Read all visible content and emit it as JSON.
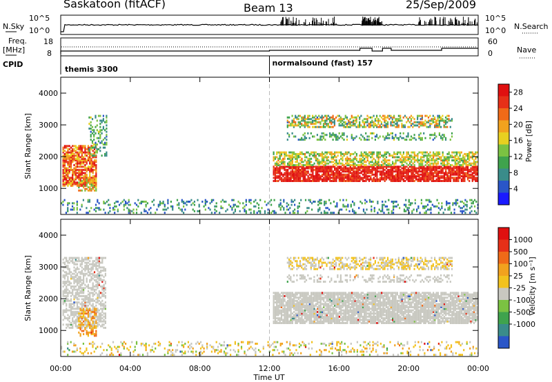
{
  "header": {
    "station": "Saskatoon (fitACF)",
    "beam": "Beam 13",
    "date": "25/Sep/2009"
  },
  "params_panel": {
    "nsky_label": "N.Sky",
    "nsky_ticks": [
      "10^5",
      "10^0"
    ],
    "nsearch_label": "N.Search",
    "nsearch_ticks": [
      "10^5",
      "10^0"
    ],
    "freq_label": "Freq.",
    "freq_unit": "[MHz]",
    "freq_ticks": [
      "18",
      "8"
    ],
    "nave_label": "Nave",
    "nave_ticks": [
      "60",
      "0"
    ],
    "cpid_label": "CPID",
    "cpid_segments": [
      {
        "start_hour": 0,
        "end_hour": 12,
        "text": "themis 3300"
      },
      {
        "start_hour": 12,
        "end_hour": 24,
        "text": "normalsound (fast) 157"
      }
    ]
  },
  "time_axis": {
    "label": "Time UT",
    "ticks": [
      "00:00",
      "04:00",
      "08:00",
      "12:00",
      "16:00",
      "20:00",
      "00:00"
    ],
    "tick_hours": [
      0,
      4,
      8,
      12,
      16,
      20,
      24
    ]
  },
  "chart_data": [
    {
      "type": "heatmap",
      "name": "power",
      "xlabel": "Time UT",
      "ylabel": "Slant Range [km]",
      "xlim": [
        0,
        24
      ],
      "ylim": [
        180,
        4500
      ],
      "yticks": [
        "1000",
        "2000",
        "3000",
        "4000"
      ],
      "ytick_values": [
        1000,
        2000,
        3000,
        4000
      ],
      "colorbar": {
        "label": "Power [dB]",
        "ticks": [
          "4",
          "8",
          "12",
          "16",
          "20",
          "24",
          "28"
        ],
        "tick_values": [
          4,
          8,
          12,
          16,
          20,
          24,
          28
        ],
        "range": [
          0,
          30
        ],
        "colors": [
          "#1a1aff",
          "#2a56c8",
          "#3a8c8a",
          "#3fa34d",
          "#7bc242",
          "#e8d020",
          "#f2a21e",
          "#f06a18",
          "#e63018",
          "#e01010"
        ]
      },
      "regions": [
        {
          "t0": 0.1,
          "t1": 2.0,
          "r0": 1050,
          "r1": 2350,
          "v0": 14,
          "v1": 29,
          "density": 0.75
        },
        {
          "t0": 1.6,
          "t1": 2.6,
          "r0": 2000,
          "r1": 3300,
          "v0": 4,
          "v1": 14,
          "density": 0.35
        },
        {
          "t0": 1.0,
          "t1": 2.0,
          "r0": 900,
          "r1": 1300,
          "v0": 10,
          "v1": 24,
          "density": 0.6
        },
        {
          "t0": 12.2,
          "t1": 23.9,
          "r0": 1200,
          "r1": 1700,
          "v0": 22,
          "v1": 29,
          "density": 0.85
        },
        {
          "t0": 12.2,
          "t1": 23.9,
          "r0": 1700,
          "r1": 2150,
          "v0": 8,
          "v1": 20,
          "density": 0.6
        },
        {
          "t0": 13.0,
          "t1": 22.5,
          "r0": 2900,
          "r1": 3300,
          "v0": 4,
          "v1": 22,
          "density": 0.55
        },
        {
          "t0": 13.0,
          "t1": 22.5,
          "r0": 2500,
          "r1": 2750,
          "v0": 4,
          "v1": 14,
          "density": 0.3
        },
        {
          "t0": 0.0,
          "t1": 24.0,
          "r0": 200,
          "r1": 650,
          "v0": 2,
          "v1": 12,
          "density": 0.22
        }
      ]
    },
    {
      "type": "heatmap",
      "name": "velocity",
      "xlabel": "Time UT",
      "ylabel": "Slant Range [km]",
      "xlim": [
        0,
        24
      ],
      "ylim": [
        180,
        4500
      ],
      "yticks": [
        "1000",
        "2000",
        "3000",
        "4000"
      ],
      "ytick_values": [
        1000,
        2000,
        3000,
        4000
      ],
      "colorbar": {
        "label": "Velocity [m s⁻¹]",
        "ticks": [
          "1000",
          "500",
          "100",
          "25",
          "-25",
          "-100",
          "-500",
          "-1000"
        ],
        "colors": [
          "#2a56c8",
          "#3a8c8a",
          "#3fa34d",
          "#7bc242",
          "#c8c8c0",
          "#f2c21e",
          "#f2a21e",
          "#f06a18",
          "#e63018",
          "#e01010"
        ]
      },
      "regions": [
        {
          "t0": 0.1,
          "t1": 2.6,
          "r0": 1050,
          "r1": 3300,
          "v0": 4,
          "v1": 4,
          "density": 0.55
        },
        {
          "t0": 1.0,
          "t1": 2.0,
          "r0": 800,
          "r1": 1700,
          "v0": 5,
          "v1": 7,
          "density": 0.5
        },
        {
          "t0": 12.2,
          "t1": 23.9,
          "r0": 1200,
          "r1": 2200,
          "v0": 4,
          "v1": 4,
          "density": 0.85
        },
        {
          "t0": 13.0,
          "t1": 22.5,
          "r0": 2900,
          "r1": 3300,
          "v0": 4,
          "v1": 5,
          "density": 0.5
        },
        {
          "t0": 13.0,
          "t1": 22.5,
          "r0": 2500,
          "r1": 2750,
          "v0": 4,
          "v1": 4,
          "density": 0.3
        },
        {
          "t0": 0.0,
          "t1": 24.0,
          "r0": 200,
          "r1": 650,
          "v0": 3,
          "v1": 6,
          "density": 0.2
        }
      ]
    }
  ]
}
